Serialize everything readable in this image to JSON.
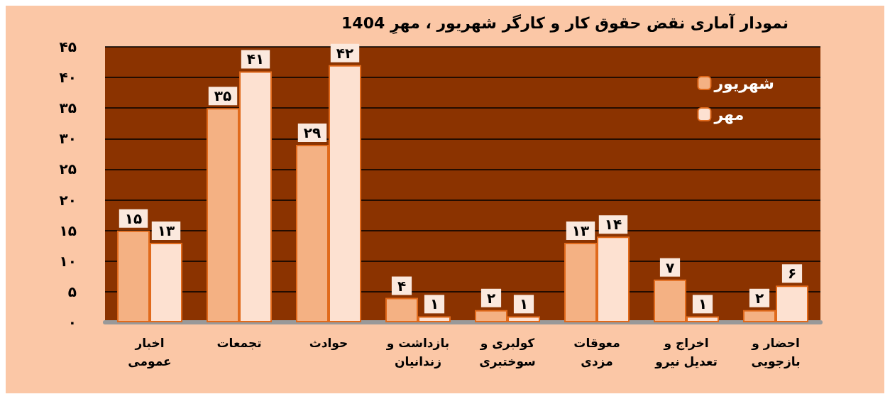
{
  "chart_data": {
    "type": "bar",
    "title": "نمودار آماری نقض حقوق کار و کارگر شهریور ، مهرِ 1404",
    "categories": [
      "اخبار عمومی",
      "تجمعات",
      "حوادث",
      "بازداشت و زندانیان",
      "کولبری و سوختبری",
      "معوقات مزدی",
      "اخراج و تعدیل نیرو",
      "احضار و بازجویی"
    ],
    "series": [
      {
        "name": "شهریور",
        "color": "#f4b183",
        "values": [
          15,
          35,
          29,
          4,
          2,
          13,
          7,
          2
        ],
        "value_labels": [
          "۱۵",
          "۳۵",
          "۲۹",
          "۴",
          "۲",
          "۱۳",
          "۷",
          "۲"
        ]
      },
      {
        "name": "مهر",
        "color": "#fde1d1",
        "values": [
          13,
          41,
          42,
          1,
          1,
          14,
          1,
          6
        ],
        "value_labels": [
          "۱۳",
          "۴۱",
          "۴۲",
          "۱",
          "۱",
          "۱۴",
          "۱",
          "۶"
        ]
      }
    ],
    "ylim": [
      0,
      45
    ],
    "yticks": [
      {
        "value": 0,
        "label": "۰"
      },
      {
        "value": 5,
        "label": "۵"
      },
      {
        "value": 10,
        "label": "۱۰"
      },
      {
        "value": 15,
        "label": "۱۵"
      },
      {
        "value": 20,
        "label": "۲۰"
      },
      {
        "value": 25,
        "label": "۲۵"
      },
      {
        "value": 30,
        "label": "۳۰"
      },
      {
        "value": 35,
        "label": "۳۵"
      },
      {
        "value": 40,
        "label": "۴۰"
      },
      {
        "value": 45,
        "label": "۴۵"
      }
    ],
    "grid": "y",
    "legend": "top right"
  }
}
